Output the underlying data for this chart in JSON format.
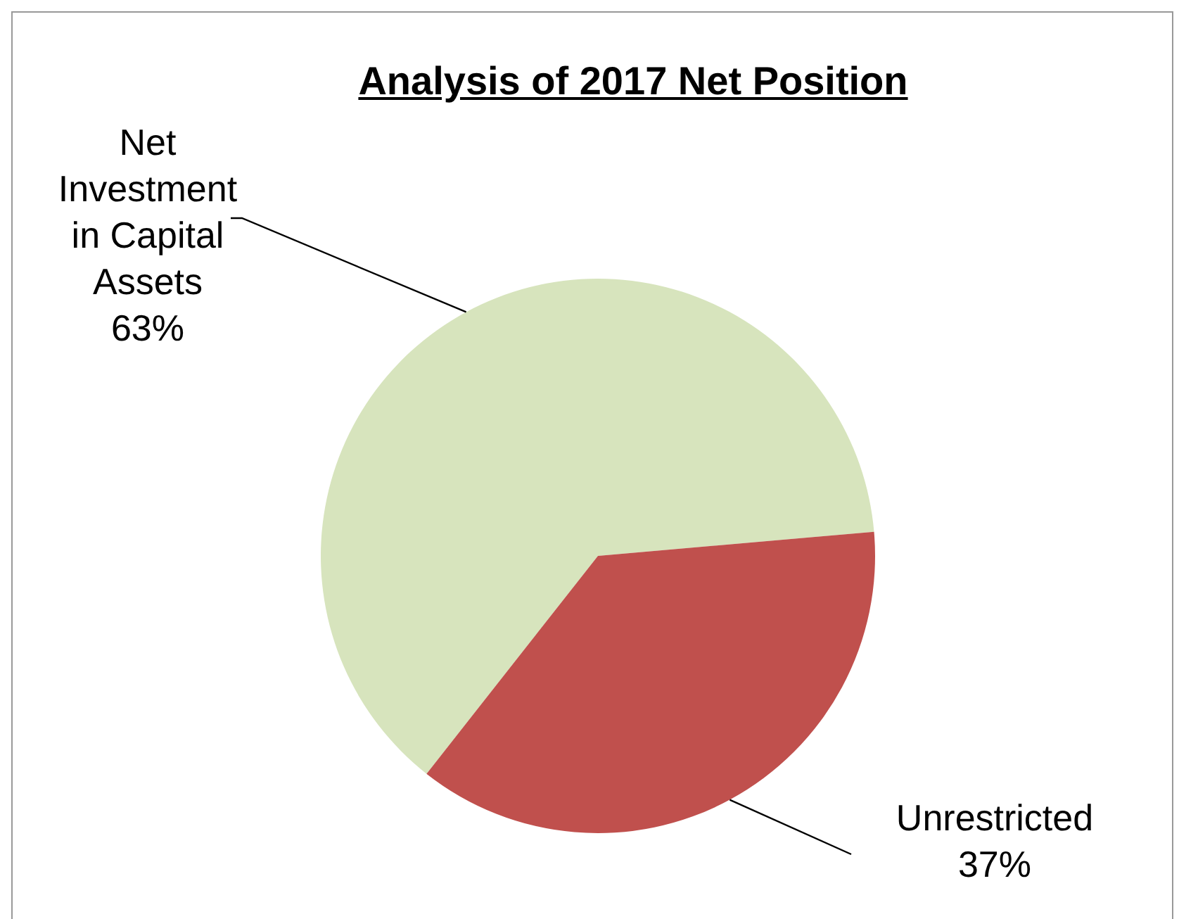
{
  "chart_data": {
    "type": "pie",
    "title": "Analysis of 2017 Net Position",
    "categories": [
      "Net Investment in Capital Assets",
      "Unrestricted"
    ],
    "values": [
      63,
      37
    ],
    "colors": [
      "#d7e4bd",
      "#c0504d"
    ],
    "value_labels": [
      "63%",
      "37%"
    ],
    "legend": false
  }
}
